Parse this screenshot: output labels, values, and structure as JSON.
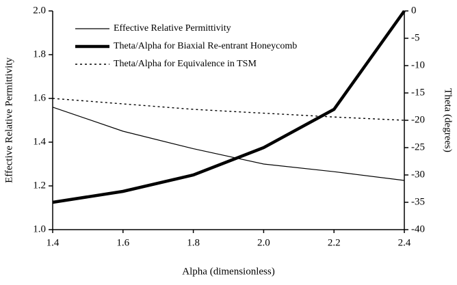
{
  "chart_data": {
    "type": "line",
    "xlabel": "Alpha (dimensionless)",
    "ylabel": "Effective Relative Permittivity",
    "y2label": "Theta (degrees)",
    "x": [
      1.4,
      1.6,
      1.8,
      2.0,
      2.2,
      2.4
    ],
    "xlim": [
      1.4,
      2.4
    ],
    "xticks": [
      1.4,
      1.6,
      1.8,
      {
        "value": 2.0,
        "label": "2.0"
      },
      2.2,
      2.4
    ],
    "ylim": [
      1.0,
      2.0
    ],
    "yticks": [
      {
        "value": 1.0,
        "label": "1.0"
      },
      1.2,
      1.4,
      1.6,
      1.8,
      {
        "value": 2.0,
        "label": "2.0"
      }
    ],
    "y2lim": [
      -40,
      0
    ],
    "y2ticks": [
      -40,
      -35,
      -30,
      -25,
      -20,
      -15,
      -10,
      -5,
      0
    ],
    "legend": "upper left",
    "grid": false,
    "series": [
      {
        "name": "Effective Relative Permittivity",
        "color": "#000000",
        "line_width": 1.2,
        "dashed": false,
        "values": [
          1.56,
          1.45,
          1.37,
          1.3,
          1.265,
          1.225
        ]
      },
      {
        "name": "Theta/Alpha for Biaxial Re-entrant Honeycomb",
        "color": "#000000",
        "line_width": 4.5,
        "dashed": false,
        "axis": "y2",
        "values": [
          -35,
          -33,
          -30,
          -25,
          -18,
          0
        ]
      },
      {
        "name": "Theta/Alpha for Equivalence in TSM",
        "color": "#000000",
        "line_width": 1.4,
        "dashed": true,
        "axis": "y2",
        "values": [
          -16,
          -17,
          -18,
          -18.7,
          -19.4,
          -20
        ]
      }
    ]
  }
}
